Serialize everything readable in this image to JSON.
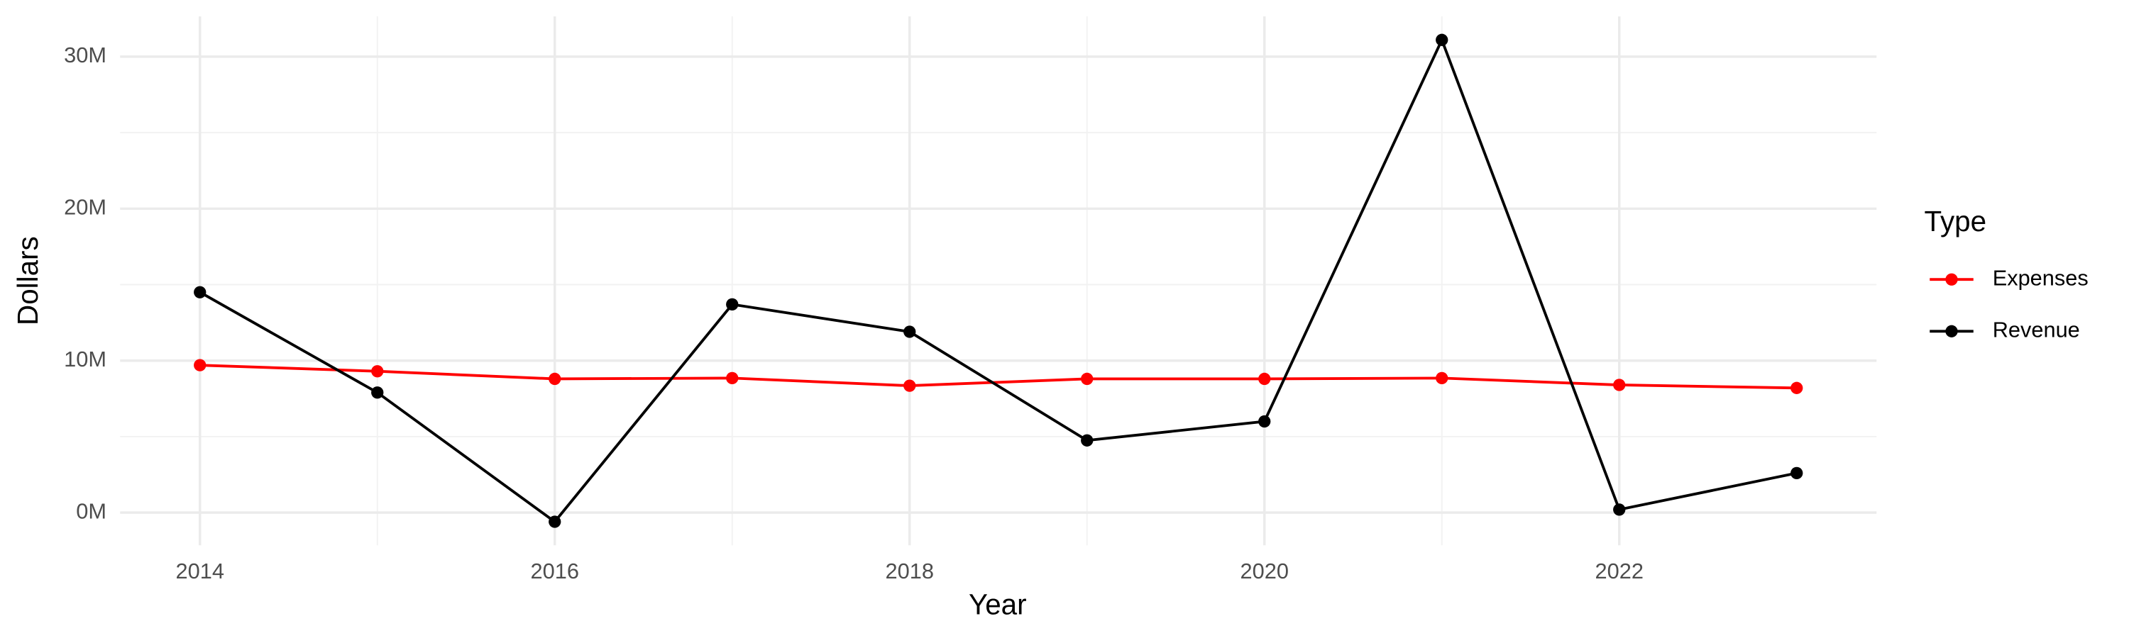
{
  "chart_data": {
    "type": "line",
    "x_label": "Year",
    "y_label": "Dollars",
    "legend_title": "Type",
    "x": [
      2014,
      2015,
      2016,
      2017,
      2018,
      2019,
      2020,
      2021,
      2022,
      2023
    ],
    "series": [
      {
        "name": "Expenses",
        "color": "#ff0000",
        "values": [
          9700000,
          9300000,
          8800000,
          8850000,
          8350000,
          8800000,
          8800000,
          8850000,
          8400000,
          8200000
        ]
      },
      {
        "name": "Revenue",
        "color": "#000000",
        "values": [
          14500000,
          7900000,
          -600000,
          13700000,
          11900000,
          4750000,
          6000000,
          31100000,
          200000,
          2600000
        ]
      }
    ],
    "xlim": [
      2013.55,
      2023.45
    ],
    "xticks": [
      2014,
      2016,
      2018,
      2020,
      2022
    ],
    "ylim": [
      -2150000,
      32650000
    ],
    "yticks": [
      {
        "value": 0,
        "label": "0M"
      },
      {
        "value": 10000000,
        "label": "10M"
      },
      {
        "value": 20000000,
        "label": "20M"
      },
      {
        "value": 30000000,
        "label": "30M"
      }
    ],
    "grid": true,
    "legend_position": "right"
  }
}
